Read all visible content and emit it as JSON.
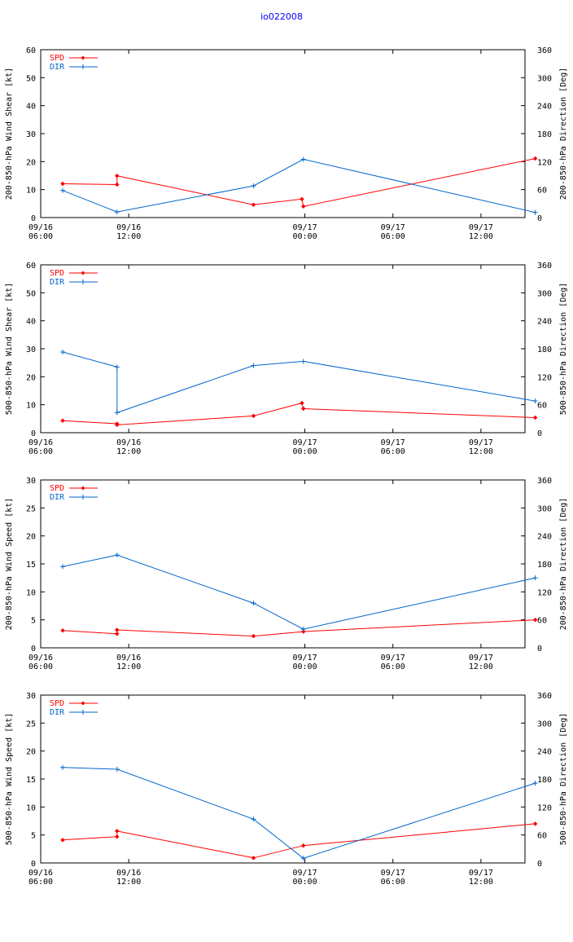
{
  "title": "io022008",
  "colors": {
    "spd": "#ff0000",
    "dir": "#0066cc",
    "axis": "#000000",
    "title": "#0000ff"
  },
  "chart_data": [
    {
      "type": "line",
      "ylabel_left": "200-850-hPa Wind Shear [kt]",
      "ylabel_right": "200-850-hPa Direction [Deg]",
      "ylim_left": [
        0,
        60
      ],
      "ylim_right": [
        0,
        360
      ],
      "yticks_left": [
        "0",
        "10",
        "20",
        "30",
        "40",
        "50",
        "60"
      ],
      "yticks_right": [
        "0",
        "60",
        "120",
        "180",
        "240",
        "300",
        "360"
      ],
      "xlim_hours": [
        0,
        33
      ],
      "xticks": [
        {
          "hours": 0,
          "line1": "09/16",
          "line2": "06:00"
        },
        {
          "hours": 6,
          "line1": "09/16",
          "line2": "12:00"
        },
        {
          "hours": 18,
          "line1": "09/17",
          "line2": "00:00"
        },
        {
          "hours": 24,
          "line1": "09/17",
          "line2": "06:00"
        },
        {
          "hours": 30,
          "line1": "09/17",
          "line2": "12:00"
        }
      ],
      "series": [
        {
          "name": "SPD",
          "axis": "left",
          "x": [
            1.5,
            5.2,
            5.2,
            14.5,
            17.8,
            17.9,
            33.7
          ],
          "values": [
            12.1,
            11.8,
            14.9,
            4.6,
            6.6,
            4.0,
            21.1
          ]
        },
        {
          "name": "DIR",
          "axis": "right",
          "x": [
            1.5,
            5.2,
            14.5,
            17.9,
            33.7
          ],
          "values": [
            58,
            12,
            68,
            125,
            11
          ]
        }
      ]
    },
    {
      "type": "line",
      "ylabel_left": "500-850-hPa Wind Shear [kt]",
      "ylabel_right": "500-850-hPa Direction [Deg]",
      "ylim_left": [
        0,
        60
      ],
      "ylim_right": [
        0,
        360
      ],
      "yticks_left": [
        "0",
        "10",
        "20",
        "30",
        "40",
        "50",
        "60"
      ],
      "yticks_right": [
        "0",
        "60",
        "120",
        "180",
        "240",
        "300",
        "360"
      ],
      "xlim_hours": [
        0,
        33
      ],
      "xticks": [
        {
          "hours": 0,
          "line1": "09/16",
          "line2": "06:00"
        },
        {
          "hours": 6,
          "line1": "09/16",
          "line2": "12:00"
        },
        {
          "hours": 18,
          "line1": "09/17",
          "line2": "00:00"
        },
        {
          "hours": 24,
          "line1": "09/17",
          "line2": "06:00"
        },
        {
          "hours": 30,
          "line1": "09/17",
          "line2": "12:00"
        }
      ],
      "series": [
        {
          "name": "SPD",
          "axis": "left",
          "x": [
            1.5,
            5.2,
            5.2,
            14.5,
            17.8,
            17.9,
            33.7
          ],
          "values": [
            4.3,
            3.2,
            2.8,
            6.0,
            10.6,
            8.6,
            5.4
          ]
        },
        {
          "name": "DIR",
          "axis": "right",
          "x": [
            1.5,
            5.2,
            5.2,
            14.5,
            17.9,
            33.7
          ],
          "values": [
            173,
            141,
            43,
            144,
            153,
            68
          ]
        }
      ]
    },
    {
      "type": "line",
      "ylabel_left": "200-850-hPa Wind Speed [kt]",
      "ylabel_right": "200-850-hPa Direction [Deg]",
      "ylim_left": [
        0,
        30
      ],
      "ylim_right": [
        0,
        360
      ],
      "yticks_left": [
        "0",
        "5",
        "10",
        "15",
        "20",
        "25",
        "30"
      ],
      "yticks_right": [
        "0",
        "60",
        "120",
        "180",
        "240",
        "300",
        "360"
      ],
      "xlim_hours": [
        0,
        33
      ],
      "xticks": [
        {
          "hours": 0,
          "line1": "09/16",
          "line2": "06:00"
        },
        {
          "hours": 6,
          "line1": "09/16",
          "line2": "12:00"
        },
        {
          "hours": 18,
          "line1": "09/17",
          "line2": "00:00"
        },
        {
          "hours": 24,
          "line1": "09/17",
          "line2": "06:00"
        },
        {
          "hours": 30,
          "line1": "09/17",
          "line2": "12:00"
        }
      ],
      "series": [
        {
          "name": "SPD",
          "axis": "left",
          "x": [
            1.5,
            5.2,
            5.2,
            14.5,
            17.9,
            33.7
          ],
          "values": [
            3.1,
            2.5,
            3.2,
            2.1,
            2.9,
            5.0
          ]
        },
        {
          "name": "DIR",
          "axis": "right",
          "x": [
            1.5,
            5.2,
            14.5,
            17.9,
            33.7
          ],
          "values": [
            174,
            199,
            96,
            40,
            150
          ]
        }
      ]
    },
    {
      "type": "line",
      "ylabel_left": "500-850-hPa Wind Speed [kt]",
      "ylabel_right": "500-850-hPa Direction [Deg]",
      "ylim_left": [
        0,
        30
      ],
      "ylim_right": [
        0,
        360
      ],
      "yticks_left": [
        "0",
        "5",
        "10",
        "15",
        "20",
        "25",
        "30"
      ],
      "yticks_right": [
        "0",
        "60",
        "120",
        "180",
        "240",
        "300",
        "360"
      ],
      "xlim_hours": [
        0,
        33
      ],
      "xticks": [
        {
          "hours": 0,
          "line1": "09/16",
          "line2": "06:00"
        },
        {
          "hours": 6,
          "line1": "09/16",
          "line2": "12:00"
        },
        {
          "hours": 18,
          "line1": "09/17",
          "line2": "00:00"
        },
        {
          "hours": 24,
          "line1": "09/17",
          "line2": "06:00"
        },
        {
          "hours": 30,
          "line1": "09/17",
          "line2": "12:00"
        }
      ],
      "series": [
        {
          "name": "SPD",
          "axis": "left",
          "x": [
            1.5,
            5.2,
            5.2,
            14.5,
            17.9,
            33.7
          ],
          "values": [
            4.1,
            4.7,
            5.7,
            0.9,
            3.1,
            7.0
          ]
        },
        {
          "name": "DIR",
          "axis": "right",
          "x": [
            1.5,
            5.2,
            14.5,
            17.9,
            33.7
          ],
          "values": [
            205,
            201,
            94,
            10,
            171
          ]
        }
      ]
    }
  ]
}
